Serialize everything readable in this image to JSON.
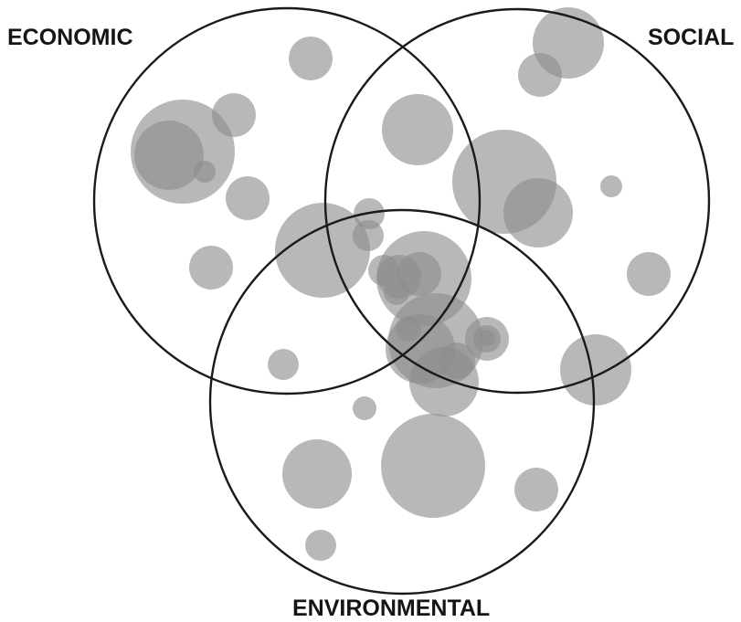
{
  "labels": {
    "economic": "ECONOMIC",
    "social": "SOCIAL",
    "environmental": "ENVIRONMENTAL"
  },
  "colors": {
    "ring": "#1a1a1a",
    "bubble": "#8c8c8c",
    "background": "#ffffff"
  },
  "bubble_count": 37
}
